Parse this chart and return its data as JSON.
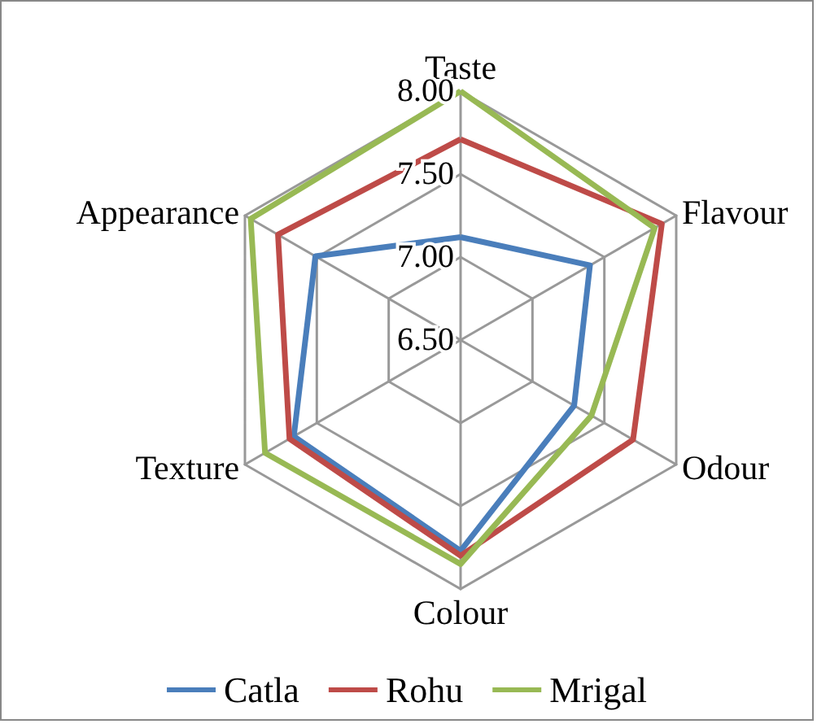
{
  "chart_data": {
    "type": "radar",
    "categories": [
      "Taste",
      "Flavour",
      "Odour",
      "Colour",
      "Texture",
      "Appearance"
    ],
    "ylim": [
      6.5,
      8
    ],
    "yticks": [
      {
        "value": 6.5,
        "label": "6.50"
      },
      {
        "value": 7,
        "label": "7.00"
      },
      {
        "value": 7.5,
        "label": "7.50"
      },
      {
        "value": 8,
        "label": "8.00"
      }
    ],
    "series": [
      {
        "name": "Catla",
        "color": "#4a7ebb",
        "values": [
          7.12,
          7.4,
          7.29,
          7.77,
          7.66,
          7.51
        ]
      },
      {
        "name": "Rohu",
        "color": "#be4b48",
        "values": [
          7.71,
          7.9,
          7.7,
          7.8,
          7.69,
          7.77
        ]
      },
      {
        "name": "Mrigal",
        "color": "#98b954",
        "values": [
          8.0,
          7.85,
          7.41,
          7.85,
          7.86,
          7.96
        ]
      }
    ],
    "grid": true,
    "legend": "bottom",
    "marker": "none",
    "line_style": "solid"
  }
}
